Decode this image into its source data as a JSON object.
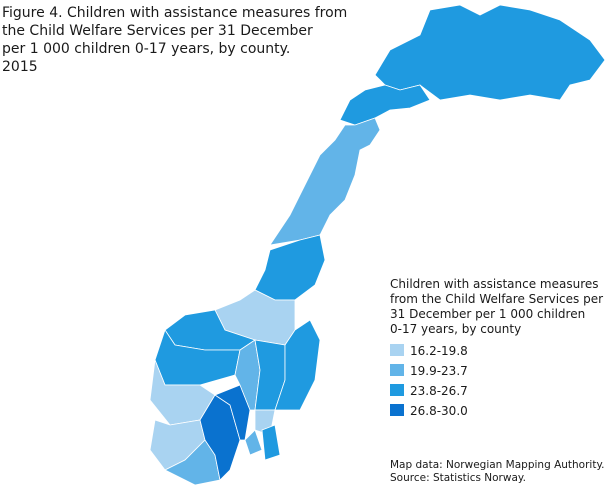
{
  "title": [
    "Figure 4. Children with assistance measures from",
    "the Child Welfare Services per 31 December",
    "per 1 000 children 0-17 years, by county.",
    "2015"
  ],
  "legend": {
    "title": [
      "Children with assistance measures",
      "from the Child Welfare Services per",
      "31 December per 1 000 children",
      "0-17 years, by county"
    ],
    "items": [
      {
        "label": "16.2-19.8",
        "color": "#a9d3f1"
      },
      {
        "label": "19.9-23.7",
        "color": "#62b4e8"
      },
      {
        "label": "23.8-26.7",
        "color": "#1f9ae0"
      },
      {
        "label": "26.8-30.0",
        "color": "#0a72cf"
      }
    ]
  },
  "source": [
    "Map data: Norwegian Mapping Authority.",
    "Source: Statistics Norway."
  ]
}
